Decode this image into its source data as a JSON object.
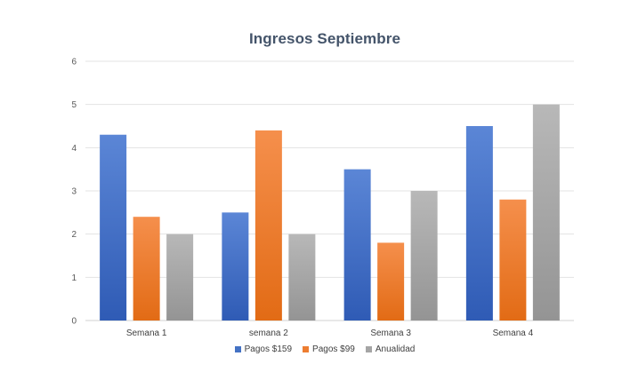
{
  "chart_data": {
    "type": "bar",
    "title": "Ingresos Septiembre",
    "xlabel": "",
    "ylabel": "",
    "categories": [
      "Semana 1",
      "semana 2",
      "Semana 3",
      "Semana 4"
    ],
    "series": [
      {
        "name": "Pagos $159",
        "values": [
          4.3,
          2.5,
          3.5,
          4.5
        ],
        "color": "#4472c4",
        "color_top": "#5b86d6",
        "color_bottom": "#2f5bb5"
      },
      {
        "name": "Pagos $99",
        "values": [
          2.4,
          4.4,
          1.8,
          2.8
        ],
        "color": "#ed7d31",
        "color_top": "#f58f4c",
        "color_bottom": "#e26b15"
      },
      {
        "name": "Anualidad",
        "values": [
          2.0,
          2.0,
          3.0,
          5.0
        ],
        "color": "#a5a5a5",
        "color_top": "#b8b8b8",
        "color_bottom": "#949494"
      }
    ],
    "ylim": [
      0,
      6
    ],
    "yticks": [
      "0",
      "1",
      "2",
      "3",
      "4",
      "5",
      "6"
    ],
    "grid": true,
    "legend_position": "bottom"
  }
}
